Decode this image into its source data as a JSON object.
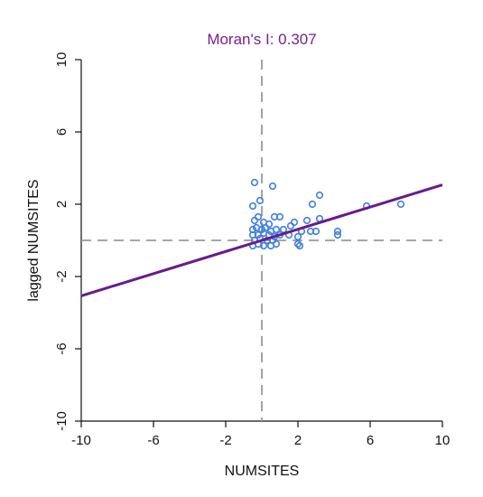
{
  "chart_data": {
    "type": "scatter",
    "title": "Moran's I: 0.307",
    "xlabel": "NUMSITES",
    "ylabel": "lagged NUMSITES",
    "xlim": [
      -10,
      10
    ],
    "ylim": [
      -10,
      10
    ],
    "xticks": [
      -10,
      -6,
      -2,
      2,
      6,
      10
    ],
    "yticks": [
      -10,
      -6,
      -2,
      2,
      6,
      10
    ],
    "xtick_labels": [
      "-10",
      "-6",
      "-2",
      "2",
      "6",
      "10"
    ],
    "ytick_labels": [
      "-10",
      "-6",
      "-2",
      "2",
      "6",
      "10"
    ],
    "grid": false,
    "reference_lines": {
      "x": 0,
      "y": 0
    },
    "regression": {
      "slope": 0.307,
      "intercept": 0.0
    },
    "points": [
      [
        -0.4,
        3.2
      ],
      [
        -0.1,
        2.2
      ],
      [
        0.6,
        3.0
      ],
      [
        -0.5,
        1.9
      ],
      [
        -0.4,
        1.1
      ],
      [
        -0.2,
        1.3
      ],
      [
        0.1,
        1.0
      ],
      [
        0.4,
        0.9
      ],
      [
        0.7,
        1.3
      ],
      [
        1.0,
        1.3
      ],
      [
        -0.5,
        0.6
      ],
      [
        -0.3,
        0.7
      ],
      [
        0.0,
        0.6
      ],
      [
        0.2,
        0.7
      ],
      [
        0.5,
        0.5
      ],
      [
        0.8,
        0.6
      ],
      [
        -0.5,
        0.3
      ],
      [
        -0.2,
        0.3
      ],
      [
        0.1,
        0.4
      ],
      [
        0.4,
        0.3
      ],
      [
        0.7,
        0.2
      ],
      [
        1.0,
        0.3
      ],
      [
        -0.4,
        0.0
      ],
      [
        -0.1,
        0.1
      ],
      [
        0.3,
        0.0
      ],
      [
        0.6,
        0.0
      ],
      [
        -0.5,
        -0.3
      ],
      [
        -0.2,
        -0.2
      ],
      [
        0.1,
        -0.3
      ],
      [
        0.5,
        -0.3
      ],
      [
        0.8,
        -0.2
      ],
      [
        1.2,
        0.6
      ],
      [
        1.6,
        0.8
      ],
      [
        1.8,
        1.0
      ],
      [
        1.5,
        0.3
      ],
      [
        2.0,
        0.2
      ],
      [
        2.2,
        0.5
      ],
      [
        2.0,
        -0.2
      ],
      [
        2.1,
        -0.3
      ],
      [
        2.5,
        1.1
      ],
      [
        2.7,
        0.5
      ],
      [
        3.0,
        0.5
      ],
      [
        2.8,
        2.0
      ],
      [
        3.2,
        2.5
      ],
      [
        3.2,
        1.2
      ],
      [
        4.2,
        0.5
      ],
      [
        4.2,
        0.3
      ],
      [
        5.8,
        1.9
      ],
      [
        7.7,
        2.0
      ]
    ],
    "marker_color": "#3f7fe0",
    "line_color": "#6a1a8c",
    "title_color": "#7a1f8f",
    "ref_line_color": "#999999"
  }
}
